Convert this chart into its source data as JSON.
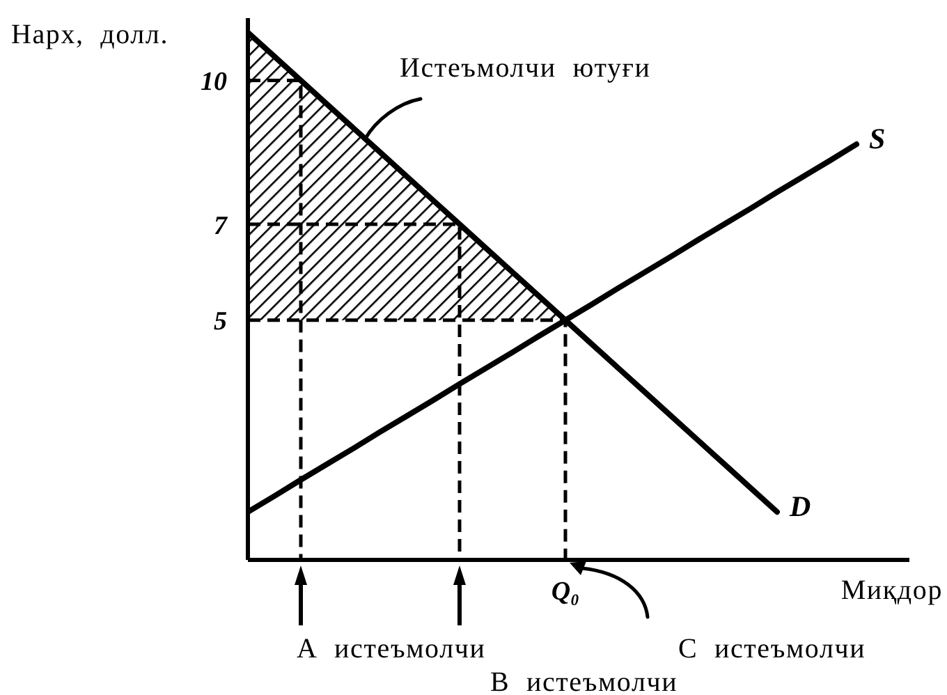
{
  "chart_data": {
    "type": "line",
    "ylabel": "Нарх, долл.",
    "xlabel": "Миқдор",
    "categories": [
      null,
      null,
      null,
      null,
      null,
      null,
      null,
      null,
      null,
      null,
      null,
      null,
      "Q₀",
      null,
      null,
      null,
      null,
      null,
      null,
      null,
      null,
      null,
      null,
      null,
      null,
      null
    ],
    "ylim": [
      0,
      11.3
    ],
    "yticks": [
      5,
      7,
      10
    ],
    "series": [
      {
        "name": "D",
        "type": "line",
        "color": "#000000",
        "values": [
          11,
          10.5,
          10,
          9.5,
          9,
          8.5,
          8,
          7.5,
          7,
          6.5,
          6,
          5.5,
          5,
          4.5,
          4,
          3.5,
          3,
          2.5,
          2,
          1.5,
          1,
          null,
          null,
          null,
          null,
          null
        ],
        "lower": [
          5,
          5,
          5,
          5,
          5,
          5,
          5,
          5,
          5,
          5,
          5,
          5,
          5,
          null,
          null,
          null,
          null,
          null,
          null,
          null,
          null,
          null,
          null,
          null,
          null,
          null
        ],
        "upper": [
          11,
          10.5,
          10,
          9.5,
          9,
          8.5,
          8,
          7.5,
          7,
          6.5,
          6,
          5.5,
          5,
          null,
          null,
          null,
          null,
          null,
          null,
          null,
          null,
          null,
          null,
          null,
          null,
          null
        ]
      },
      {
        "name": "S",
        "type": "line",
        "color": "#000000",
        "values": [
          1,
          1.33,
          1.67,
          2,
          2.33,
          2.67,
          3,
          3.33,
          3.67,
          4,
          4.33,
          4.67,
          5,
          5.33,
          5.67,
          6,
          6.33,
          6.67,
          7,
          7.33,
          7.67,
          8,
          8.33,
          8.67,
          null,
          null
        ]
      },
      {
        "type": "step",
        "color": "#000000",
        "line_style": "dashed",
        "values": [
          10,
          10,
          10,
          0,
          null,
          null,
          null,
          null,
          null,
          null,
          null,
          null,
          null,
          null,
          null,
          null,
          null,
          null,
          null,
          null,
          null,
          null,
          null,
          null,
          null,
          null
        ]
      },
      {
        "type": "step",
        "color": "#000000",
        "line_style": "dashed",
        "values": [
          7,
          7,
          7,
          7,
          7,
          7,
          7,
          7,
          7,
          0,
          null,
          null,
          null,
          null,
          null,
          null,
          null,
          null,
          null,
          null,
          null,
          null,
          null,
          null,
          null,
          null
        ]
      },
      {
        "type": "step",
        "color": "#000000",
        "line_style": "dashed",
        "values": [
          5,
          5,
          5,
          5,
          5,
          5,
          5,
          5,
          5,
          5,
          5,
          5,
          5,
          0,
          null,
          null,
          null,
          null,
          null,
          null,
          null,
          null,
          null,
          null,
          null,
          null
        ]
      }
    ],
    "annotations": [
      "Истеъмолчи ютуғи",
      "А истеъмолчи",
      "В истеъмолчи",
      "С истеъмолчи"
    ]
  }
}
